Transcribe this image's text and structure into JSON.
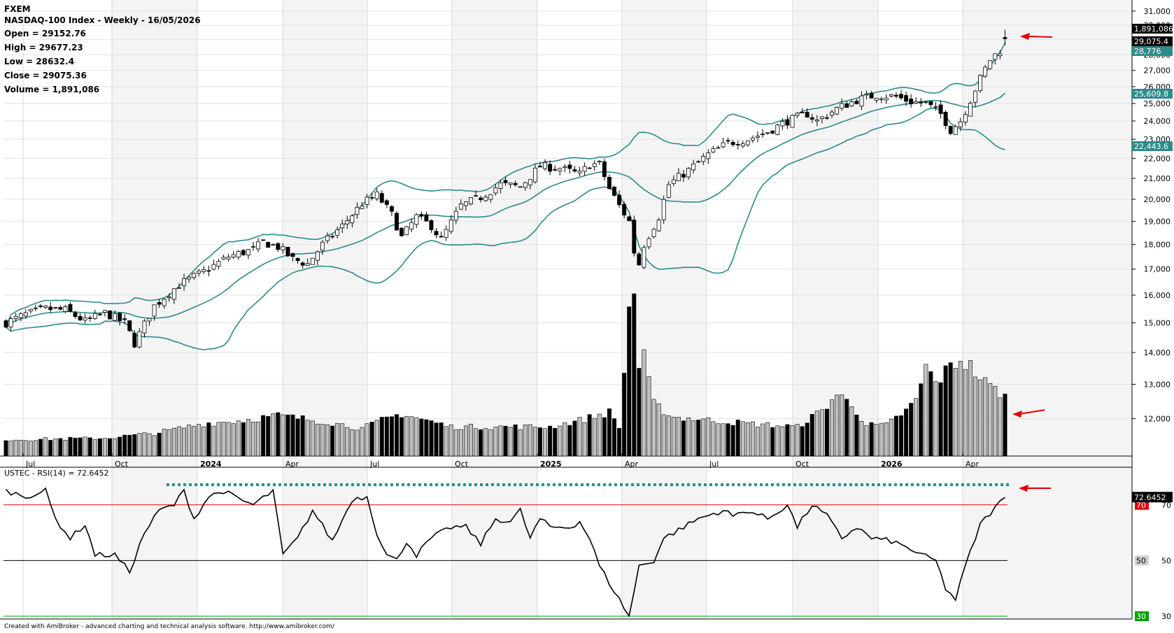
{
  "header": {
    "symbol": "FXEM",
    "subtitle": "NASDAQ-100 Index - Weekly - 16/05/2026",
    "open": "Open = 29152.76",
    "high": "High = 29677.23",
    "low": "Low = 28632.4",
    "close": "Close = 29075.36",
    "volume": "Volume = 1,891,086"
  },
  "rsi_title": "USTEC - RSI(14) = 72.6452",
  "footer": "Created with AmiBroker - advanced charting and technical analysis software. http://www.amibroker.com/",
  "colors": {
    "bollinger": "#2e8b8b",
    "badge_teal": "#2e8b8b",
    "overbought_line": "#e00000",
    "oversold_line": "#00a000",
    "arrow": "#e00000",
    "shade": "#ebebeb"
  },
  "chart_data": [
    {
      "type": "candlestick",
      "title": "NASDAQ-100 Index - Weekly - 16/05/2026",
      "x_tick_labels": [
        "Jul",
        "Oct",
        "2024",
        "Apr",
        "Jul",
        "Oct",
        "2025",
        "Apr",
        "Jul",
        "Oct",
        "2026",
        "Apr"
      ],
      "y_ticks": [
        12000,
        13000,
        14000,
        15000,
        16000,
        17000,
        18000,
        19000,
        20000,
        21000,
        22000,
        23000,
        24000,
        25000,
        26000,
        27000,
        28000,
        29000,
        30000,
        31000
      ],
      "y_tick_labels": [
        "12,000",
        "13,000",
        "14,000",
        "15,000",
        "16,000",
        "17,000",
        "18,000",
        "19,000",
        "20,000",
        "21,000",
        "22,000",
        "23,000",
        "24,000",
        "25,000",
        "26,000",
        "27,000",
        "28,000",
        "29,000",
        "30,000",
        "31,000"
      ],
      "ylim": [
        11000,
        31500
      ],
      "scale": "log",
      "price_path": [
        [
          0,
          15000
        ],
        [
          4,
          15300
        ],
        [
          8,
          15500
        ],
        [
          12,
          15450
        ],
        [
          16,
          15050
        ],
        [
          20,
          15350
        ],
        [
          24,
          15000
        ],
        [
          26,
          14300
        ],
        [
          30,
          15600
        ],
        [
          35,
          16400
        ],
        [
          40,
          16900
        ],
        [
          45,
          17500
        ],
        [
          50,
          17800
        ],
        [
          52,
          18100
        ],
        [
          55,
          17900
        ],
        [
          58,
          17400
        ],
        [
          61,
          17200
        ],
        [
          64,
          18000
        ],
        [
          68,
          18800
        ],
        [
          72,
          19800
        ],
        [
          75,
          20200
        ],
        [
          78,
          19300
        ],
        [
          80,
          18300
        ],
        [
          83,
          19200
        ],
        [
          86,
          18800
        ],
        [
          88,
          18200
        ],
        [
          92,
          19700
        ],
        [
          96,
          20100
        ],
        [
          100,
          20700
        ],
        [
          104,
          20600
        ],
        [
          108,
          21600
        ],
        [
          112,
          21500
        ],
        [
          116,
          21200
        ],
        [
          118,
          21700
        ],
        [
          120,
          21700
        ],
        [
          122,
          20500
        ],
        [
          124,
          19700
        ],
        [
          126,
          19000
        ],
        [
          127,
          17700
        ],
        [
          128,
          17200
        ],
        [
          129,
          18000
        ],
        [
          132,
          19200
        ],
        [
          134,
          20700
        ],
        [
          138,
          21400
        ],
        [
          142,
          22200
        ],
        [
          146,
          22800
        ],
        [
          150,
          23000
        ],
        [
          154,
          23400
        ],
        [
          158,
          24000
        ],
        [
          162,
          24400
        ],
        [
          164,
          24000
        ],
        [
          168,
          24700
        ],
        [
          172,
          25200
        ],
        [
          176,
          25500
        ],
        [
          180,
          25400
        ],
        [
          183,
          25100
        ],
        [
          186,
          25000
        ],
        [
          189,
          24400
        ],
        [
          191,
          23500
        ],
        [
          193,
          24000
        ],
        [
          195,
          25200
        ],
        [
          197,
          26500
        ],
        [
          199,
          27700
        ],
        [
          201,
          28300
        ],
        [
          202,
          29070
        ]
      ],
      "bollinger_last": {
        "upper": 28776,
        "middle": 25609.8,
        "lower": 22443.6
      },
      "price_badges": [
        "1,891,086",
        "29,075.4",
        "28,776",
        "25,609.8",
        "22,443.6"
      ],
      "last_bar": {
        "open": 29152.76,
        "high": 29677.23,
        "low": 28632.4,
        "close": 29075.36,
        "volume": 1891086
      }
    },
    {
      "type": "bar",
      "title": "Volume",
      "volume_path": [
        [
          0,
          0.1
        ],
        [
          20,
          0.11
        ],
        [
          30,
          0.14
        ],
        [
          40,
          0.2
        ],
        [
          48,
          0.22
        ],
        [
          55,
          0.25
        ],
        [
          65,
          0.21
        ],
        [
          72,
          0.17
        ],
        [
          76,
          0.22
        ],
        [
          80,
          0.26
        ],
        [
          90,
          0.18
        ],
        [
          100,
          0.18
        ],
        [
          110,
          0.18
        ],
        [
          116,
          0.22
        ],
        [
          122,
          0.27
        ],
        [
          124,
          0.18
        ],
        [
          125,
          0.5
        ],
        [
          126,
          0.75
        ],
        [
          127,
          0.85
        ],
        [
          128,
          0.55
        ],
        [
          129,
          0.6
        ],
        [
          131,
          0.32
        ],
        [
          135,
          0.24
        ],
        [
          150,
          0.2
        ],
        [
          160,
          0.18
        ],
        [
          165,
          0.28
        ],
        [
          168,
          0.38
        ],
        [
          171,
          0.32
        ],
        [
          174,
          0.19
        ],
        [
          178,
          0.19
        ],
        [
          182,
          0.28
        ],
        [
          184,
          0.34
        ],
        [
          186,
          0.55
        ],
        [
          188,
          0.45
        ],
        [
          191,
          0.55
        ],
        [
          193,
          0.6
        ],
        [
          195,
          0.55
        ],
        [
          198,
          0.45
        ],
        [
          202,
          0.37
        ]
      ],
      "spikes": [
        [
          127,
          1.0
        ],
        [
          126,
          0.92
        ]
      ]
    },
    {
      "type": "line",
      "title": "USTEC - RSI(14) = 72.6452",
      "ylim": [
        29,
        83
      ],
      "levels": [
        30,
        50,
        70
      ],
      "level_labels": [
        "30",
        "50",
        "70"
      ],
      "current": 72.6452,
      "current_label": "72.6452",
      "rsi_path": [
        [
          0,
          75
        ],
        [
          4,
          73
        ],
        [
          8,
          75
        ],
        [
          10,
          65
        ],
        [
          13,
          58
        ],
        [
          16,
          63
        ],
        [
          18,
          52
        ],
        [
          22,
          52
        ],
        [
          25,
          46
        ],
        [
          28,
          60
        ],
        [
          31,
          68
        ],
        [
          34,
          70
        ],
        [
          36,
          75
        ],
        [
          38,
          65
        ],
        [
          41,
          73
        ],
        [
          44,
          75
        ],
        [
          47,
          72
        ],
        [
          50,
          70
        ],
        [
          54,
          75
        ],
        [
          56,
          52
        ],
        [
          59,
          58
        ],
        [
          62,
          68
        ],
        [
          66,
          57
        ],
        [
          70,
          72
        ],
        [
          73,
          73
        ],
        [
          75,
          60
        ],
        [
          77,
          52
        ],
        [
          79,
          50
        ],
        [
          81,
          57
        ],
        [
          83,
          52
        ],
        [
          86,
          58
        ],
        [
          90,
          62
        ],
        [
          93,
          62
        ],
        [
          96,
          56
        ],
        [
          99,
          65
        ],
        [
          102,
          64
        ],
        [
          104,
          68
        ],
        [
          106,
          58
        ],
        [
          108,
          65
        ],
        [
          110,
          62
        ],
        [
          114,
          62
        ],
        [
          116,
          64
        ],
        [
          118,
          58
        ],
        [
          120,
          48
        ],
        [
          122,
          42
        ],
        [
          124,
          36
        ],
        [
          126,
          30
        ],
        [
          128,
          48
        ],
        [
          131,
          50
        ],
        [
          133,
          58
        ],
        [
          137,
          62
        ],
        [
          140,
          65
        ],
        [
          145,
          68
        ],
        [
          147,
          66
        ],
        [
          150,
          68
        ],
        [
          154,
          65
        ],
        [
          158,
          70
        ],
        [
          160,
          62
        ],
        [
          163,
          70
        ],
        [
          166,
          66
        ],
        [
          169,
          58
        ],
        [
          172,
          62
        ],
        [
          175,
          58
        ],
        [
          179,
          57
        ],
        [
          183,
          54
        ],
        [
          185,
          52
        ],
        [
          188,
          50
        ],
        [
          190,
          40
        ],
        [
          192,
          36
        ],
        [
          194,
          48
        ],
        [
          197,
          63
        ],
        [
          200,
          69
        ],
        [
          202,
          72.6
        ]
      ]
    }
  ]
}
